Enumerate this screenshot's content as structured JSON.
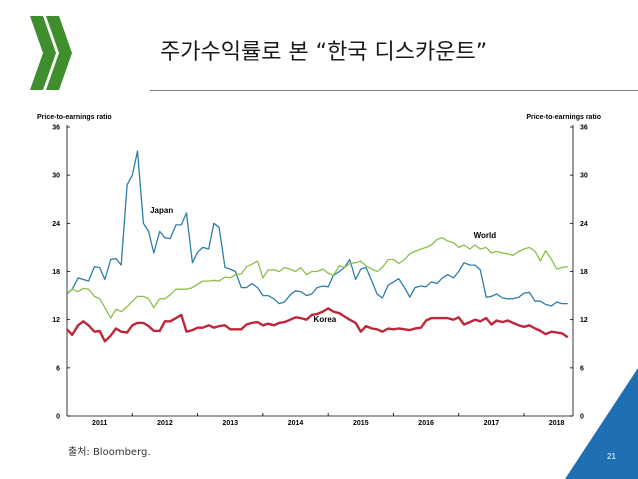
{
  "slide": {
    "title": "주가수익률로 본 “한국 디스카운트”",
    "source": "출처: Bloomberg.",
    "page_number": "21"
  },
  "colors": {
    "logo": "#3e8e2e",
    "japan": "#2e7ea8",
    "world": "#8cbf4a",
    "korea": "#c0263a",
    "corner": "#1f6fb2"
  },
  "chart_data": {
    "type": "line",
    "ylabel_left": "Price-to-earnings ratio",
    "ylabel_right": "Price-to-earnings ratio",
    "ylim": [
      0,
      36
    ],
    "yticks": [
      0,
      6,
      12,
      18,
      24,
      30,
      36
    ],
    "xlim": [
      2010.5,
      2018.25
    ],
    "xticks": [
      {
        "label": "2011",
        "x": 2011
      },
      {
        "label": "2012",
        "x": 2012
      },
      {
        "label": "2013",
        "x": 2013
      },
      {
        "label": "2014",
        "x": 2014
      },
      {
        "label": "2015",
        "x": 2015
      },
      {
        "label": "2016",
        "x": 2016
      },
      {
        "label": "2017",
        "x": 2017
      },
      {
        "label": "2018",
        "x": 2018
      }
    ],
    "series": [
      {
        "name": "Japan",
        "label_at": [
          2011.95,
          25.3
        ],
        "x": [
          2010.5,
          2010.58,
          2010.67,
          2010.75,
          2010.83,
          2010.92,
          2011.0,
          2011.08,
          2011.17,
          2011.25,
          2011.33,
          2011.42,
          2011.5,
          2011.58,
          2011.67,
          2011.75,
          2011.83,
          2011.92,
          2012.0,
          2012.08,
          2012.17,
          2012.25,
          2012.33,
          2012.42,
          2012.5,
          2012.58,
          2012.67,
          2012.75,
          2012.83,
          2012.92,
          2013.0,
          2013.08,
          2013.17,
          2013.25,
          2013.33,
          2013.42,
          2013.5,
          2013.58,
          2013.67,
          2013.75,
          2013.83,
          2013.92,
          2014.0,
          2014.08,
          2014.17,
          2014.25,
          2014.33,
          2014.42,
          2014.5,
          2014.58,
          2014.67,
          2014.75,
          2014.83,
          2014.92,
          2015.0,
          2015.08,
          2015.17,
          2015.25,
          2015.33,
          2015.42,
          2015.5,
          2015.58,
          2015.67,
          2015.75,
          2015.83,
          2015.92,
          2016.0,
          2016.08,
          2016.17,
          2016.25,
          2016.33,
          2016.42,
          2016.5,
          2016.58,
          2016.67,
          2016.75,
          2016.83,
          2016.92,
          2017.0,
          2017.08,
          2017.17,
          2017.25,
          2017.33,
          2017.42,
          2017.5,
          2017.58,
          2017.67,
          2017.75,
          2017.83,
          2017.92,
          2018.0,
          2018.08,
          2018.17
        ],
        "values": [
          15.2,
          15.8,
          17.2,
          17.0,
          16.8,
          18.6,
          18.5,
          17.0,
          19.5,
          19.6,
          18.8,
          28.8,
          30.0,
          33.0,
          24.0,
          23.0,
          20.3,
          23.0,
          22.2,
          22.1,
          23.8,
          23.8,
          25.3,
          19.1,
          20.4,
          21.0,
          20.8,
          24.0,
          23.5,
          18.5,
          18.3,
          18.0,
          16.0,
          16.0,
          16.5,
          16.0,
          15.0,
          15.0,
          14.6,
          14.0,
          14.2,
          15.1,
          15.6,
          15.5,
          15.0,
          15.2,
          16.0,
          16.2,
          16.1,
          17.5,
          18.0,
          18.5,
          19.5,
          17.0,
          18.3,
          18.5,
          16.8,
          15.2,
          14.7,
          16.3,
          16.7,
          17.1,
          16.0,
          14.8,
          16.0,
          16.2,
          16.1,
          16.7,
          16.5,
          17.2,
          17.6,
          17.2,
          18.0,
          19.1,
          18.8,
          18.8,
          18.2,
          14.8,
          14.9,
          15.2,
          14.7,
          14.6,
          14.6,
          14.8,
          15.3,
          15.4,
          14.3,
          14.3,
          13.9,
          13.7,
          14.2,
          14.0,
          14.0
        ]
      },
      {
        "name": "World",
        "label_at": [
          2016.9,
          22.2
        ],
        "x": [
          2010.5,
          2010.58,
          2010.67,
          2010.75,
          2010.83,
          2010.92,
          2011.0,
          2011.08,
          2011.17,
          2011.25,
          2011.33,
          2011.42,
          2011.5,
          2011.58,
          2011.67,
          2011.75,
          2011.83,
          2011.92,
          2012.0,
          2012.08,
          2012.17,
          2012.25,
          2012.33,
          2012.42,
          2012.5,
          2012.58,
          2012.67,
          2012.75,
          2012.83,
          2012.92,
          2013.0,
          2013.08,
          2013.17,
          2013.25,
          2013.33,
          2013.42,
          2013.5,
          2013.58,
          2013.67,
          2013.75,
          2013.83,
          2013.92,
          2014.0,
          2014.08,
          2014.17,
          2014.25,
          2014.33,
          2014.42,
          2014.5,
          2014.58,
          2014.67,
          2014.75,
          2014.83,
          2014.92,
          2015.0,
          2015.08,
          2015.17,
          2015.25,
          2015.33,
          2015.42,
          2015.5,
          2015.58,
          2015.67,
          2015.75,
          2015.83,
          2015.92,
          2016.0,
          2016.08,
          2016.17,
          2016.25,
          2016.33,
          2016.42,
          2016.5,
          2016.58,
          2016.67,
          2016.75,
          2016.83,
          2016.92,
          2017.0,
          2017.08,
          2017.17,
          2017.25,
          2017.33,
          2017.42,
          2017.5,
          2017.58,
          2017.67,
          2017.75,
          2017.83,
          2017.92,
          2018.0,
          2018.08,
          2018.17
        ],
        "values": [
          15.3,
          15.8,
          15.5,
          15.9,
          15.8,
          14.9,
          14.6,
          13.5,
          12.2,
          13.3,
          13.0,
          13.6,
          14.3,
          14.9,
          14.9,
          14.6,
          13.5,
          14.6,
          14.6,
          15.1,
          15.8,
          15.8,
          15.8,
          16.0,
          16.4,
          16.8,
          16.8,
          16.9,
          16.8,
          17.3,
          17.2,
          17.6,
          17.7,
          18.6,
          18.9,
          19.3,
          17.2,
          18.2,
          18.2,
          18.0,
          18.5,
          18.3,
          18.0,
          18.5,
          17.6,
          18.0,
          18.0,
          18.3,
          17.8,
          17.5,
          18.7,
          18.5,
          19.0,
          19.1,
          19.3,
          18.7,
          18.3,
          18.0,
          18.5,
          19.5,
          19.5,
          19.0,
          19.5,
          20.2,
          20.5,
          20.8,
          21.0,
          21.3,
          22.0,
          22.2,
          21.8,
          21.6,
          21.0,
          21.3,
          20.8,
          21.3,
          20.8,
          21.0,
          20.3,
          20.5,
          20.3,
          20.2,
          20.0,
          20.5,
          20.8,
          21.0,
          20.5,
          19.3,
          20.6,
          19.5,
          18.3,
          18.5,
          18.6
        ]
      },
      {
        "name": "Korea",
        "label_at": [
          2014.45,
          11.7
        ],
        "x": [
          2010.5,
          2010.58,
          2010.67,
          2010.75,
          2010.83,
          2010.92,
          2011.0,
          2011.08,
          2011.17,
          2011.25,
          2011.33,
          2011.42,
          2011.5,
          2011.58,
          2011.67,
          2011.75,
          2011.83,
          2011.92,
          2012.0,
          2012.08,
          2012.17,
          2012.25,
          2012.33,
          2012.42,
          2012.5,
          2012.58,
          2012.67,
          2012.75,
          2012.83,
          2012.92,
          2013.0,
          2013.08,
          2013.17,
          2013.25,
          2013.33,
          2013.42,
          2013.5,
          2013.58,
          2013.67,
          2013.75,
          2013.83,
          2013.92,
          2014.0,
          2014.08,
          2014.17,
          2014.25,
          2014.33,
          2014.42,
          2014.5,
          2014.58,
          2014.67,
          2014.75,
          2014.83,
          2014.92,
          2015.0,
          2015.08,
          2015.17,
          2015.25,
          2015.33,
          2015.42,
          2015.5,
          2015.58,
          2015.67,
          2015.75,
          2015.83,
          2015.92,
          2016.0,
          2016.08,
          2016.17,
          2016.25,
          2016.33,
          2016.42,
          2016.5,
          2016.58,
          2016.67,
          2016.75,
          2016.83,
          2016.92,
          2017.0,
          2017.08,
          2017.17,
          2017.25,
          2017.33,
          2017.42,
          2017.5,
          2017.58,
          2017.67,
          2017.75,
          2017.83,
          2017.92,
          2018.0,
          2018.08,
          2018.17
        ],
        "values": [
          10.8,
          10.1,
          11.3,
          11.8,
          11.3,
          10.5,
          10.6,
          9.3,
          10.0,
          10.9,
          10.5,
          10.4,
          11.3,
          11.6,
          11.6,
          11.2,
          10.6,
          10.6,
          11.8,
          11.8,
          12.2,
          12.6,
          10.5,
          10.7,
          11.0,
          11.0,
          11.3,
          11.0,
          11.2,
          11.3,
          10.8,
          10.8,
          10.8,
          11.4,
          11.6,
          11.7,
          11.3,
          11.5,
          11.3,
          11.6,
          11.7,
          12.0,
          12.3,
          12.2,
          12.0,
          12.6,
          12.7,
          13.0,
          13.4,
          13.0,
          12.8,
          12.4,
          12.0,
          11.6,
          10.5,
          11.2,
          10.9,
          10.8,
          10.5,
          10.9,
          10.8,
          10.9,
          10.8,
          10.7,
          10.9,
          11.0,
          11.9,
          12.2,
          12.2,
          12.2,
          12.2,
          12.0,
          12.3,
          11.4,
          11.7,
          12.0,
          11.8,
          12.2,
          11.4,
          11.9,
          11.7,
          11.9,
          11.6,
          11.3,
          11.1,
          11.3,
          10.9,
          10.6,
          10.2,
          10.5,
          10.4,
          10.3,
          9.8
        ]
      }
    ]
  }
}
